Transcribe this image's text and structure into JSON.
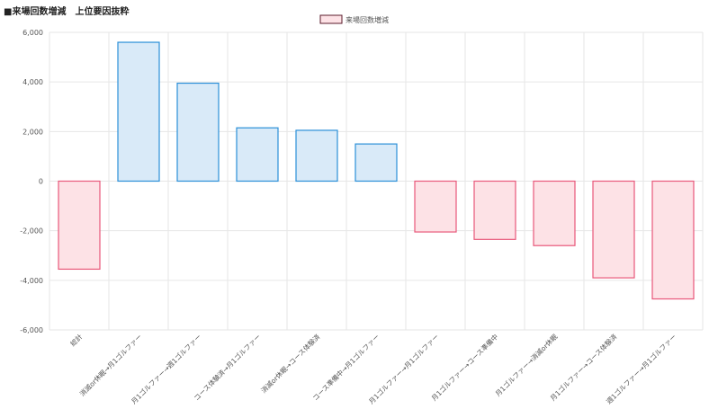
{
  "page": {
    "title": "■来場回数増減　上位要因抜粋"
  },
  "colors": {
    "pos_fill": "#d9eaf8",
    "pos_stroke": "#2b8fd8",
    "neg_fill": "#fde2e6",
    "neg_stroke": "#e8587a",
    "grid": "#e6e6e6",
    "axis_text": "#555555"
  },
  "chart_data": {
    "type": "bar",
    "title": "",
    "xlabel": "",
    "ylabel": "",
    "ylim": [
      -6000,
      6000
    ],
    "yticks": [
      6000,
      4000,
      2000,
      0,
      -2000,
      -4000,
      -6000
    ],
    "ytick_labels": [
      "6,000",
      "4,000",
      "2,000",
      "0",
      "-2,000",
      "-4,000",
      "-6,000"
    ],
    "grid": true,
    "legend": {
      "position": "top-center",
      "entries": [
        "来場回数増減"
      ]
    },
    "categories": [
      "総計",
      "消滅or休眠→月1ゴルファー",
      "月1ゴルファー→週1ゴルファー",
      "コース体験済→月1ゴルファー",
      "消滅or休眠→コース体験済",
      "コース準備中→月1ゴルファー",
      "月1ゴルファー→月1ゴルファー",
      "月1ゴルファー→コース準備中",
      "月1ゴルファー→消滅or休眠",
      "月1ゴルファー→コース体験済",
      "週1ゴルファー→月1ゴルファー"
    ],
    "series": [
      {
        "name": "来場回数増減",
        "values": [
          -3550,
          5600,
          3950,
          2150,
          2050,
          1500,
          -2050,
          -2350,
          -2600,
          -3900,
          -4750
        ]
      }
    ]
  }
}
